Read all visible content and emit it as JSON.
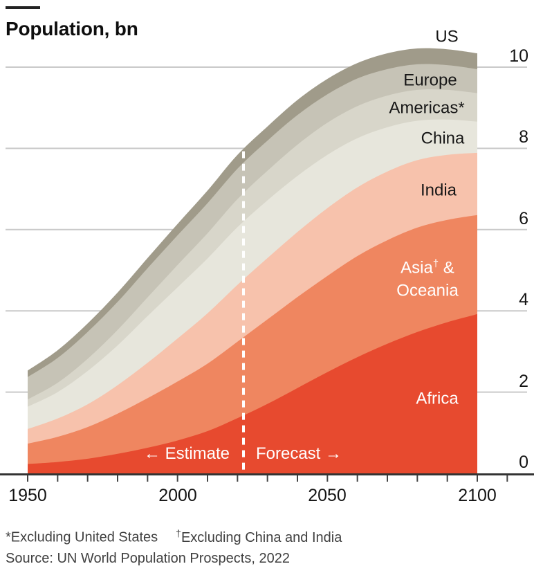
{
  "title": "Population, bn",
  "chart_data": {
    "type": "area",
    "stacked": true,
    "title": "Population, bn",
    "xlabel": "",
    "ylabel": "Population (billions)",
    "x": [
      1950,
      1960,
      1970,
      1980,
      1990,
      2000,
      2010,
      2020,
      2030,
      2040,
      2050,
      2060,
      2070,
      2080,
      2090,
      2100
    ],
    "series": [
      {
        "name": "Africa",
        "color": "#e74a2f",
        "values": [
          0.23,
          0.28,
          0.36,
          0.48,
          0.63,
          0.81,
          1.04,
          1.36,
          1.71,
          2.1,
          2.49,
          2.86,
          3.19,
          3.48,
          3.72,
          3.92
        ]
      },
      {
        "name": "Asia† & Oceania",
        "color": "#ef8660",
        "values": [
          0.5,
          0.62,
          0.78,
          0.99,
          1.22,
          1.45,
          1.66,
          1.88,
          2.08,
          2.24,
          2.37,
          2.49,
          2.55,
          2.57,
          2.52,
          2.44
        ]
      },
      {
        "name": "India",
        "color": "#f7c2ac",
        "values": [
          0.36,
          0.45,
          0.56,
          0.7,
          0.87,
          1.06,
          1.24,
          1.4,
          1.51,
          1.6,
          1.67,
          1.69,
          1.69,
          1.66,
          1.6,
          1.53
        ]
      },
      {
        "name": "China",
        "color": "#e7e6dc",
        "values": [
          0.55,
          0.65,
          0.82,
          0.98,
          1.15,
          1.26,
          1.35,
          1.42,
          1.42,
          1.38,
          1.31,
          1.21,
          1.09,
          0.97,
          0.87,
          0.77
        ]
      },
      {
        "name": "Americas*",
        "color": "#d8d6ca",
        "values": [
          0.18,
          0.23,
          0.3,
          0.38,
          0.46,
          0.55,
          0.62,
          0.69,
          0.73,
          0.77,
          0.79,
          0.79,
          0.78,
          0.76,
          0.73,
          0.7
        ]
      },
      {
        "name": "Europe",
        "color": "#c6c3b6",
        "values": [
          0.55,
          0.61,
          0.66,
          0.69,
          0.72,
          0.73,
          0.74,
          0.75,
          0.74,
          0.73,
          0.7,
          0.68,
          0.65,
          0.63,
          0.61,
          0.59
        ]
      },
      {
        "name": "US",
        "color": "#a09b8a",
        "values": [
          0.16,
          0.19,
          0.21,
          0.23,
          0.25,
          0.28,
          0.31,
          0.34,
          0.35,
          0.37,
          0.38,
          0.38,
          0.39,
          0.39,
          0.39,
          0.39
        ]
      }
    ],
    "ylim": [
      0,
      10
    ],
    "yticks": [
      0,
      2,
      4,
      6,
      8,
      10
    ],
    "xticks": [
      1950,
      2000,
      2050,
      2100
    ],
    "grid": "horizontal",
    "legend_position": "direct-labels-on-areas",
    "divider_year": 2022,
    "colors": {
      "gridline": "#c9c9c9",
      "axis": "#333333",
      "tick": "#444444",
      "divider": "#ffffff"
    }
  },
  "axis": {
    "y_ticks": [
      "10",
      "8",
      "6",
      "4",
      "2",
      "0"
    ],
    "x_ticks": [
      "1950",
      "2000",
      "2050",
      "2100"
    ]
  },
  "region_labels": {
    "us": "US",
    "europe": "Europe",
    "americas": "Americas*",
    "china": "China",
    "india": "India",
    "asia_base": "Asia",
    "asia_sup": "†",
    "asia_rest": " &",
    "asia_line2": "Oceania",
    "africa": "Africa"
  },
  "annotations": {
    "estimate": "← Estimate",
    "forecast": "Forecast →"
  },
  "footnotes": {
    "note1": "*Excluding United States",
    "note2_sup": "†",
    "note2_text": "Excluding China and India",
    "source": "Source: UN World Population Prospects, 2022"
  }
}
